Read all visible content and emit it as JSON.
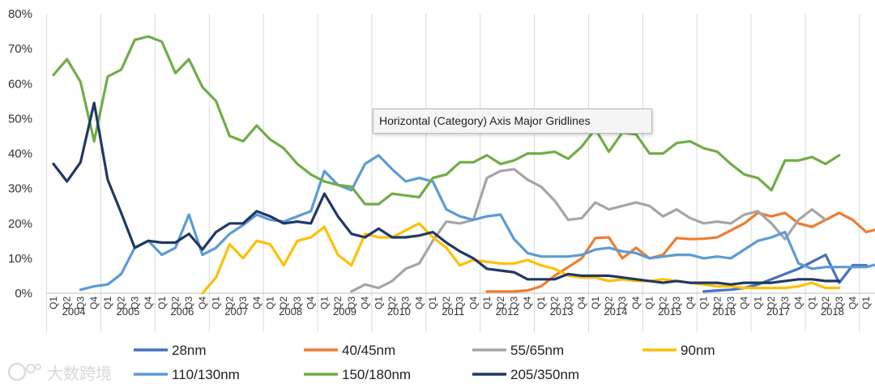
{
  "chart_data": {
    "type": "line",
    "title": "",
    "xlabel": "",
    "ylabel": "",
    "ylim": [
      0,
      80
    ],
    "y_ticks": [
      "0%",
      "10%",
      "20%",
      "30%",
      "40%",
      "50%",
      "60%",
      "70%",
      "80%"
    ],
    "grid": "vertical gridlines at year boundaries",
    "legend_position": "bottom",
    "x_quarter_labels": [
      "Q1",
      "Q2",
      "Q3",
      "Q4",
      "Q1",
      "Q2",
      "Q3",
      "Q4",
      "Q1",
      "Q2",
      "Q3",
      "Q4",
      "Q1",
      "Q2",
      "Q3",
      "Q4",
      "Q1",
      "Q2",
      "Q3",
      "Q4",
      "Q1",
      "Q2",
      "Q3",
      "Q4",
      "Q1",
      "Q2",
      "Q3",
      "Q4",
      "Q1",
      "Q2",
      "Q3",
      "Q4",
      "Q1",
      "Q2",
      "Q3",
      "Q4",
      "Q1",
      "Q2",
      "Q3",
      "Q4",
      "Q1",
      "Q2",
      "Q3",
      "Q4",
      "Q1",
      "Q2",
      "Q3",
      "Q4",
      "Q1",
      "Q2",
      "Q3",
      "Q4",
      "Q1",
      "Q2",
      "Q3",
      "Q4",
      "Q1",
      "Q2",
      "Q3",
      "Q4",
      "Q1",
      "Q2",
      "Q3"
    ],
    "x_year_labels": [
      "2004",
      "2005",
      "2006",
      "2007",
      "2008",
      "2009",
      "2010",
      "2011",
      "2012",
      "2013",
      "2014",
      "2015",
      "2016",
      "2017",
      "2018"
    ],
    "series": [
      {
        "name": "28nm",
        "color": "#4472c4",
        "values": [
          null,
          null,
          null,
          null,
          null,
          null,
          null,
          null,
          null,
          null,
          null,
          null,
          null,
          null,
          null,
          null,
          null,
          null,
          null,
          null,
          null,
          null,
          null,
          null,
          null,
          null,
          null,
          null,
          null,
          null,
          null,
          null,
          null,
          null,
          null,
          null,
          null,
          null,
          null,
          null,
          null,
          null,
          null,
          null,
          null,
          null,
          null,
          null,
          0.5,
          0.8,
          1,
          1.5,
          2.5,
          4,
          5.5,
          7,
          9,
          11,
          3,
          8,
          8
        ]
      },
      {
        "name": "40/45nm",
        "color": "#ed7d31",
        "values": [
          null,
          null,
          null,
          null,
          null,
          null,
          null,
          null,
          null,
          null,
          null,
          null,
          null,
          null,
          null,
          null,
          null,
          null,
          null,
          null,
          null,
          null,
          null,
          null,
          null,
          null,
          null,
          null,
          null,
          null,
          null,
          null,
          0.5,
          0.5,
          0.5,
          0.8,
          2,
          5,
          7.5,
          10,
          15.8,
          16,
          10,
          13,
          10,
          11,
          15.8,
          15.5,
          15.6,
          16,
          18,
          20,
          23,
          22,
          23,
          20,
          19,
          21,
          23,
          21,
          17.5,
          18.5
        ]
      },
      {
        "name": "55/65nm",
        "color": "#a5a5a5",
        "values": [
          null,
          null,
          null,
          null,
          null,
          null,
          null,
          null,
          null,
          null,
          null,
          null,
          null,
          null,
          null,
          null,
          null,
          null,
          null,
          null,
          null,
          null,
          0.5,
          2.5,
          1.5,
          3.5,
          7,
          8.5,
          15,
          20.5,
          20,
          21,
          33,
          35,
          35.5,
          32.5,
          30.5,
          26.5,
          21,
          21.5,
          26,
          24,
          25,
          26,
          25,
          22,
          24,
          21.5,
          20,
          20.5,
          20,
          22.5,
          23.5,
          20,
          15.5,
          21,
          24,
          21
        ]
      },
      {
        "name": "90nm",
        "color": "#ffc000",
        "values": [
          null,
          null,
          null,
          null,
          null,
          null,
          null,
          null,
          null,
          null,
          null,
          0,
          4.5,
          14,
          10,
          15,
          14,
          8,
          15,
          16,
          19,
          11,
          8,
          17,
          16,
          16,
          18,
          20,
          16,
          13,
          8,
          9.5,
          9,
          8.5,
          8.5,
          9.5,
          8,
          7,
          5,
          4.5,
          4.5,
          3.5,
          4,
          3.5,
          3.5,
          4,
          3.5,
          3,
          2.5,
          2,
          2,
          1.5,
          1.5,
          1.5,
          1.5,
          2,
          3,
          1.5,
          1.5
        ]
      },
      {
        "name": "110/130nm",
        "color": "#5b9bd5",
        "values": [
          null,
          null,
          1,
          2,
          2.5,
          5.5,
          13,
          15,
          11,
          13,
          22.5,
          11,
          13,
          17,
          19.5,
          22.5,
          21,
          20.5,
          22,
          23.5,
          35,
          31,
          29.5,
          37,
          39.5,
          35.5,
          32,
          33,
          32,
          24,
          22,
          21,
          22,
          22.5,
          15.5,
          11.5,
          10.5,
          10.5,
          10.5,
          11,
          12.5,
          13,
          12,
          11.5,
          10,
          10.5,
          11,
          11,
          10,
          10.5,
          10,
          12.5,
          15,
          16,
          17.5,
          8.5,
          7,
          7.5,
          7.5,
          7.5,
          7.5,
          8.5
        ]
      },
      {
        "name": "150/180nm",
        "color": "#70ad47",
        "values": [
          62.5,
          67,
          60.5,
          43.5,
          62,
          64,
          72.5,
          73.5,
          72,
          63,
          67,
          59,
          55,
          45,
          43.5,
          48,
          44,
          41.5,
          37,
          34,
          32,
          31,
          30.5,
          25.5,
          25.5,
          28.5,
          28,
          27.5,
          33,
          34,
          37.5,
          37.5,
          39.5,
          37,
          38,
          40,
          40,
          40.5,
          38.5,
          42,
          47,
          40.5,
          46,
          45.5,
          40,
          40,
          43,
          43.5,
          41.5,
          40.5,
          37,
          34,
          33,
          29.5,
          38,
          38,
          39,
          37,
          39.5
        ]
      },
      {
        "name": "205/350nm",
        "color": "#203864",
        "values": [
          37,
          32,
          37.5,
          54.5,
          32.5,
          23,
          13,
          15,
          14.5,
          14.5,
          17,
          12.5,
          17.5,
          20,
          20,
          23.5,
          22,
          20,
          20.5,
          20,
          28.5,
          22,
          17,
          16,
          18.5,
          16,
          16,
          16.5,
          17.5,
          14.5,
          12,
          10,
          7,
          6.5,
          6,
          4,
          4,
          4,
          5.5,
          5,
          5,
          5,
          4.5,
          4,
          3.5,
          3,
          3.5,
          3,
          3,
          3,
          2.5,
          3,
          3,
          3,
          3.5,
          4,
          4,
          3.5,
          3.5
        ]
      }
    ]
  },
  "tooltip": {
    "text": "Horizontal (Category) Axis Major Gridlines"
  },
  "watermark": {
    "text": "大数跨境"
  }
}
